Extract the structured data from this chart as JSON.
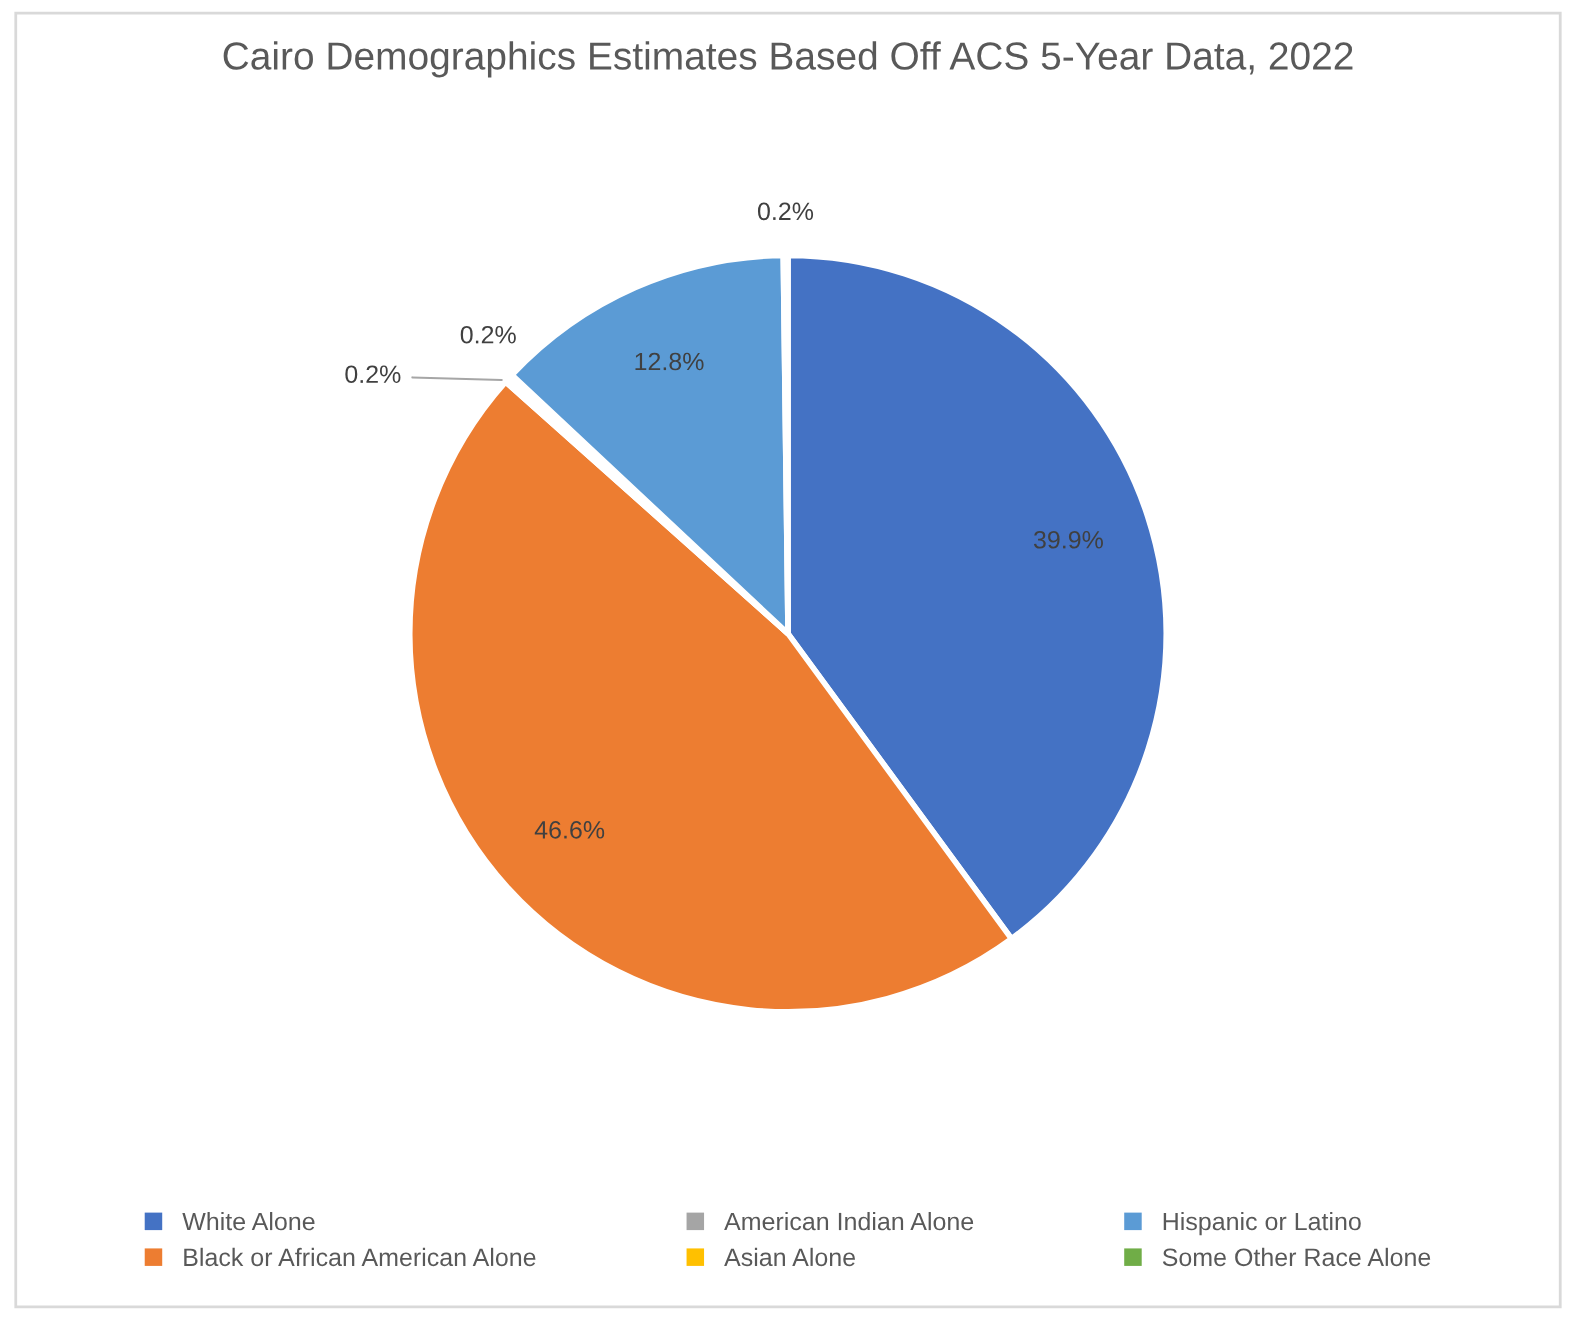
{
  "chart_data": {
    "type": "pie",
    "title": "Cairo Demographics Estimates Based Off ACS 5-Year Data, 2022",
    "categories": [
      "White Alone",
      "Black or African American Alone",
      "American Indian Alone",
      "Asian Alone",
      "Hispanic or Latino",
      "Some Other Race Alone"
    ],
    "values": [
      39.9,
      46.6,
      0.2,
      0.2,
      12.8,
      0.2
    ],
    "value_labels": [
      "39.9%",
      "46.6%",
      "0.2%",
      "0.2%",
      "12.8%",
      "0.2%"
    ],
    "colors": [
      "#4472c4",
      "#ed7d31",
      "#a5a5a5",
      "#ffc000",
      "#5b9bd5",
      "#70ad47"
    ],
    "legend": "bottom"
  }
}
